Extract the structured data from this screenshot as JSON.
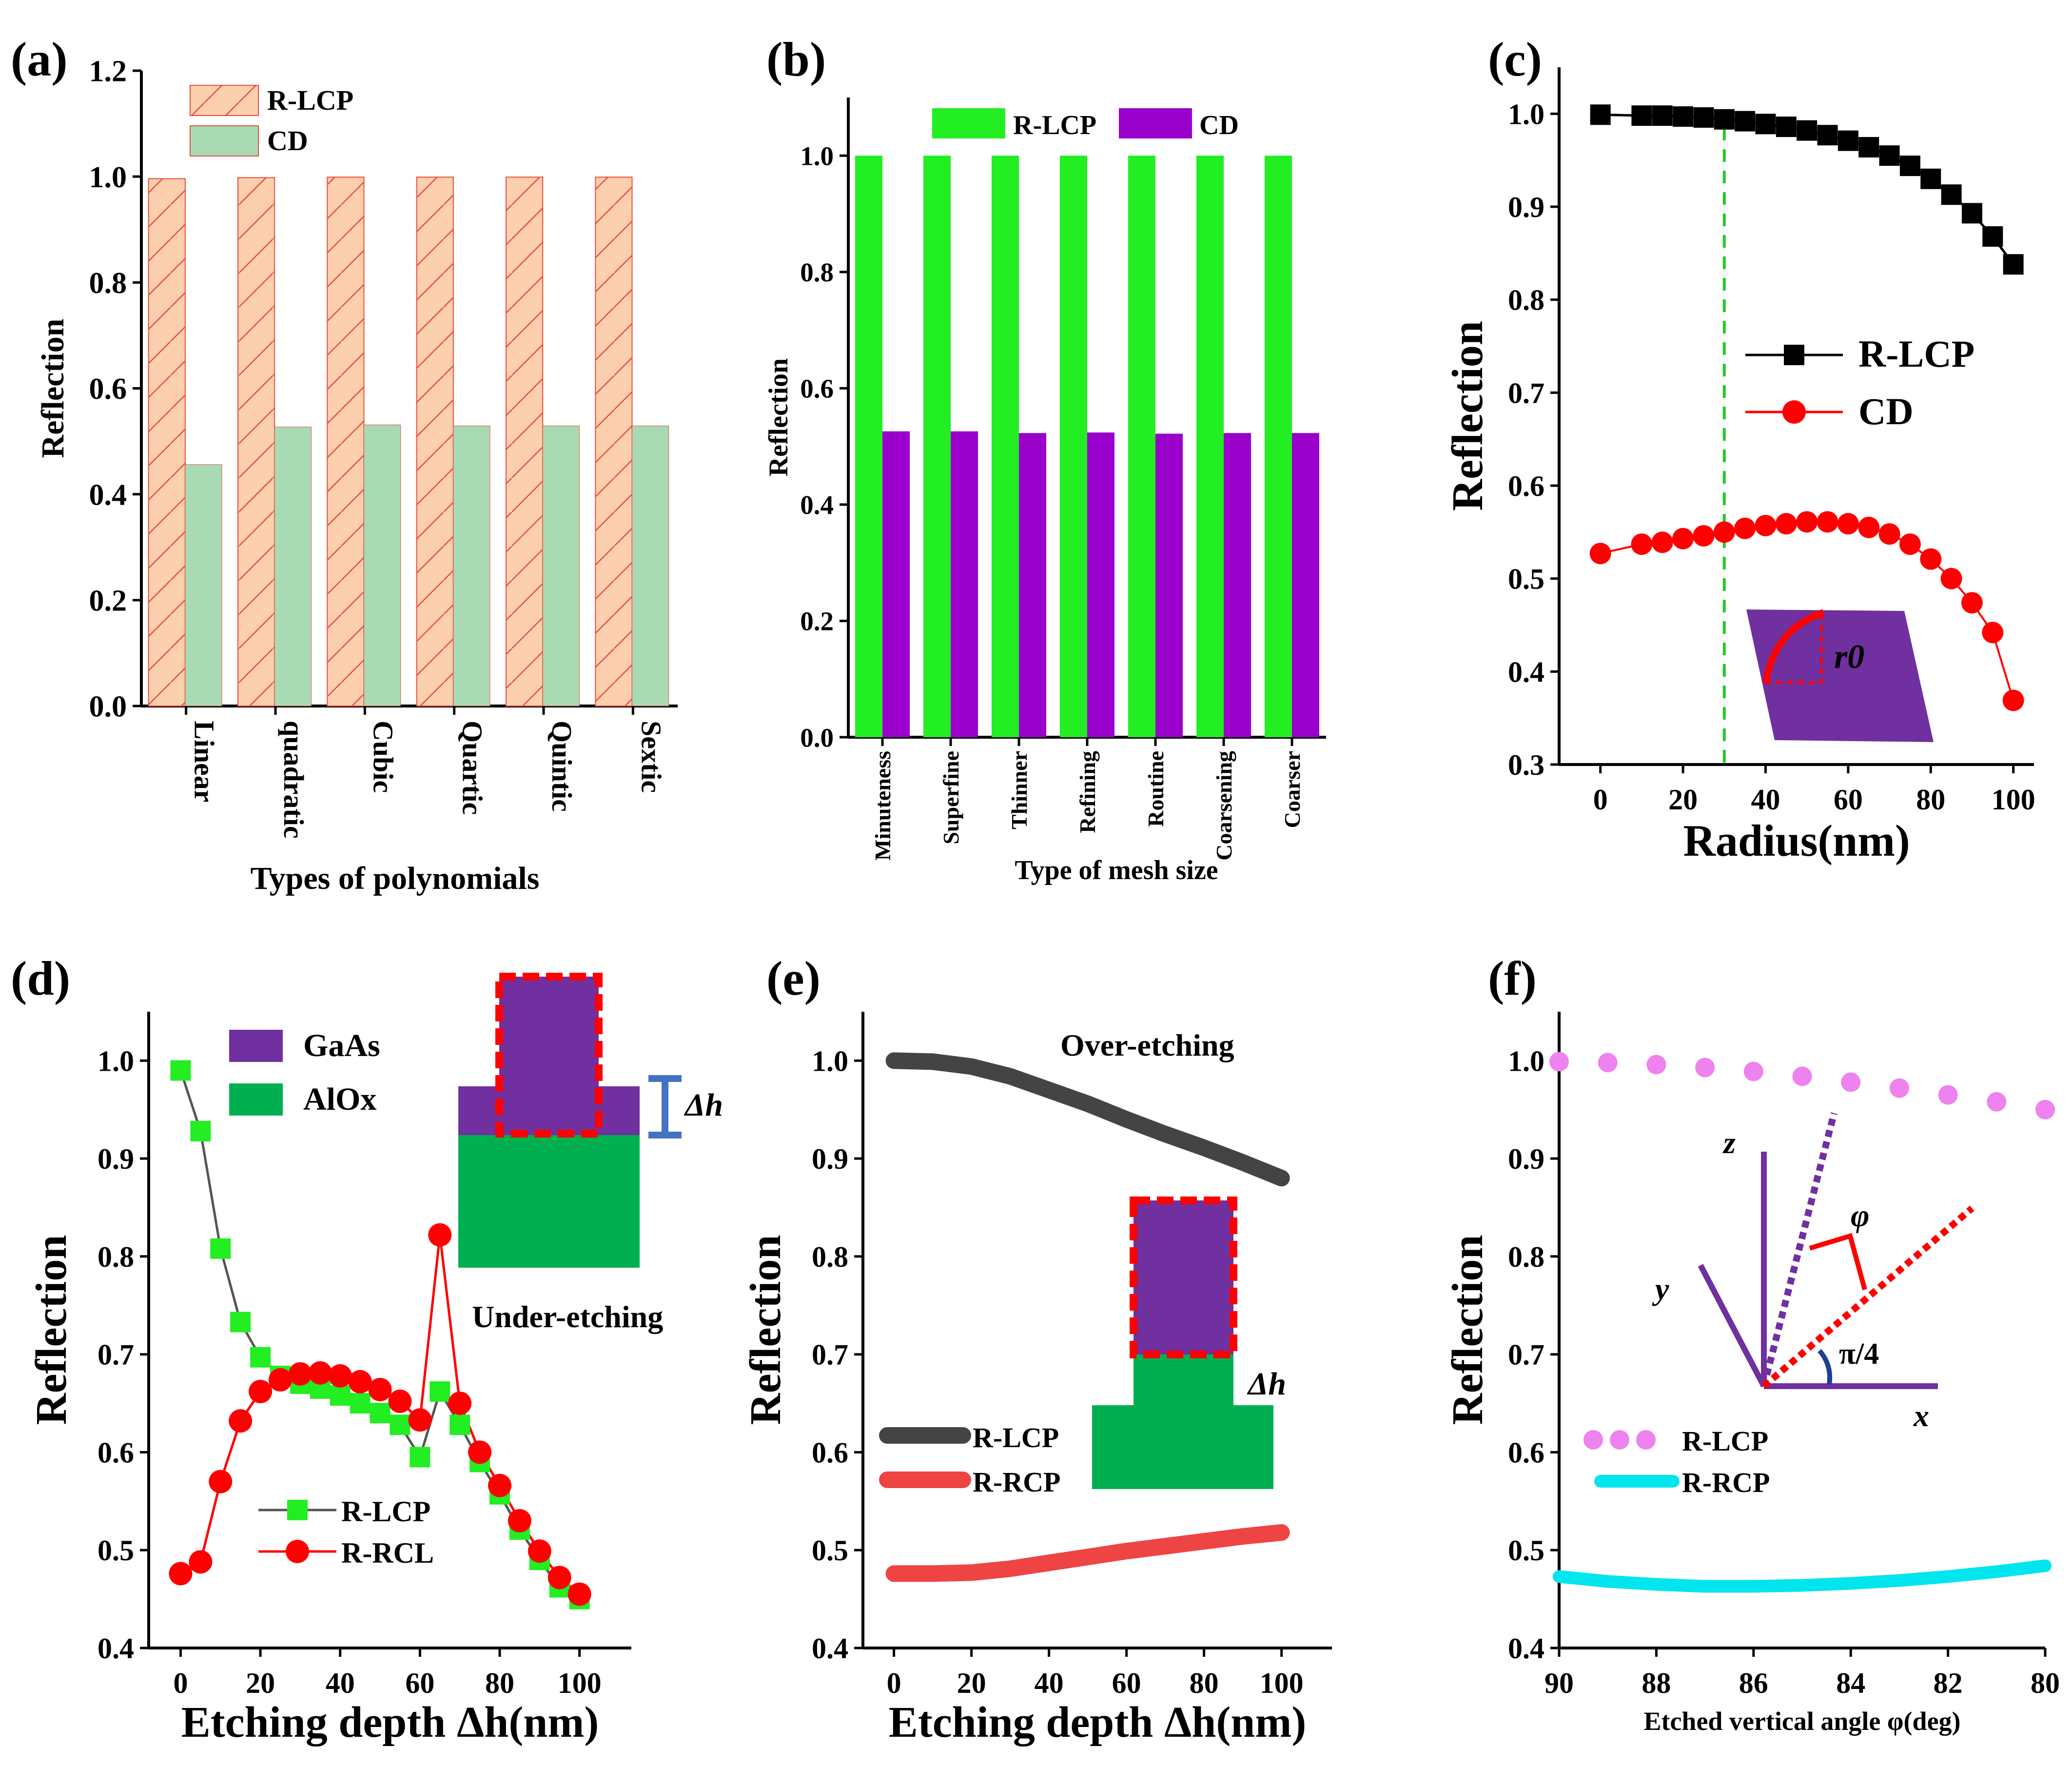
{
  "chart_data": [
    {
      "panel": "(a)",
      "type": "bar",
      "xlabel": "Types of polynomials",
      "ylabel": "Reflection",
      "ylim": [
        0,
        1.2
      ],
      "yticks": [
        "0.0",
        "0.2",
        "0.4",
        "0.6",
        "0.8",
        "1.0",
        "1.2"
      ],
      "categories": [
        "Linear",
        "quadratic",
        "Cubic",
        "Quartic",
        "Quintic",
        "Sextic"
      ],
      "series": [
        {
          "name": "R-LCP",
          "values": [
            0.996,
            0.998,
            0.999,
            0.999,
            0.999,
            0.999
          ],
          "color": "#FCCFAE",
          "edge": "#E74C3C"
        },
        {
          "name": "CD",
          "values": [
            0.456,
            0.527,
            0.531,
            0.529,
            0.529,
            0.529
          ],
          "color": "#A8DBB4",
          "edge": "#E74C3C"
        }
      ],
      "legend": "top-left"
    },
    {
      "panel": "(b)",
      "type": "bar",
      "xlabel": "Type of mesh size",
      "ylabel": "Reflection",
      "ylim": [
        0,
        1.1
      ],
      "yticks": [
        "0.0",
        "0.2",
        "0.4",
        "0.6",
        "0.8",
        "1.0"
      ],
      "categories": [
        "Minuteness",
        "Superfine",
        "Thinner",
        "Refining",
        "Routine",
        "Coarsening",
        "Coarser"
      ],
      "series": [
        {
          "name": "R-LCP",
          "values": [
            1.0,
            1.0,
            1.0,
            1.0,
            1.0,
            1.0,
            1.0
          ],
          "color": "#22EE22"
        },
        {
          "name": "CD",
          "values": [
            0.526,
            0.526,
            0.523,
            0.524,
            0.522,
            0.523,
            0.523
          ],
          "color": "#9900CC"
        }
      ],
      "legend": "top"
    },
    {
      "panel": "(c)",
      "type": "line",
      "xlabel": "Radius(nm)",
      "ylabel": "Reflection",
      "xlim": [
        -10,
        105
      ],
      "ylim": [
        0.3,
        1.05
      ],
      "xticks": [
        "0",
        "20",
        "40",
        "60",
        "80",
        "100"
      ],
      "yticks": [
        "0.3",
        "0.4",
        "0.5",
        "0.6",
        "0.7",
        "0.8",
        "0.9",
        "1.0"
      ],
      "x": [
        0,
        10,
        15,
        20,
        25,
        30,
        35,
        40,
        45,
        50,
        55,
        60,
        65,
        70,
        75,
        80,
        85,
        90,
        95,
        100
      ],
      "series": [
        {
          "name": "R-LCP",
          "values": [
            0.999,
            0.998,
            0.998,
            0.997,
            0.996,
            0.994,
            0.992,
            0.989,
            0.986,
            0.982,
            0.977,
            0.971,
            0.964,
            0.955,
            0.944,
            0.93,
            0.913,
            0.893,
            0.868,
            0.838
          ],
          "color": "#000000",
          "marker": "square"
        },
        {
          "name": "CD",
          "values": [
            0.527,
            0.537,
            0.539,
            0.543,
            0.546,
            0.55,
            0.554,
            0.557,
            0.559,
            0.561,
            0.561,
            0.559,
            0.555,
            0.548,
            0.537,
            0.521,
            0.5,
            0.474,
            0.442,
            0.369
          ],
          "color": "#FF0000",
          "marker": "circle"
        }
      ],
      "annotations": [
        "r0"
      ],
      "vline": 30,
      "legend": "center-right"
    },
    {
      "panel": "(d)",
      "type": "line",
      "xlabel": "Etching depth Δh(nm)",
      "ylabel": "Reflection",
      "xlim": [
        -8,
        113
      ],
      "ylim": [
        0.4,
        1.05
      ],
      "xticks": [
        "0",
        "20",
        "40",
        "60",
        "80",
        "100"
      ],
      "yticks": [
        "0.4",
        "0.5",
        "0.6",
        "0.7",
        "0.8",
        "0.9",
        "1.0"
      ],
      "x": [
        0,
        5,
        10,
        15,
        20,
        25,
        30,
        35,
        40,
        45,
        50,
        55,
        60,
        65,
        70,
        75,
        80,
        85,
        90,
        95,
        100
      ],
      "series": [
        {
          "name": "R-LCP",
          "values": [
            0.99,
            0.928,
            0.808,
            0.733,
            0.697,
            0.678,
            0.67,
            0.665,
            0.658,
            0.65,
            0.64,
            0.628,
            0.595,
            0.662,
            0.628,
            0.59,
            0.557,
            0.521,
            0.49,
            0.462,
            0.45
          ],
          "color": "#22EE22",
          "line": "#555555",
          "marker": "square"
        },
        {
          "name": "R-RCL",
          "values": [
            0.476,
            0.488,
            0.57,
            0.632,
            0.662,
            0.674,
            0.68,
            0.681,
            0.678,
            0.672,
            0.664,
            0.652,
            0.633,
            0.822,
            0.65,
            0.6,
            0.566,
            0.53,
            0.499,
            0.472,
            0.455
          ],
          "color": "#FF0000",
          "marker": "circle"
        }
      ],
      "inset_legend": [
        "GaAs",
        "AlOx"
      ],
      "annotations": [
        "Δh",
        "Under-etching"
      ],
      "legend": "bottom-left"
    },
    {
      "panel": "(e)",
      "type": "line",
      "xlabel": "Etching depth Δh(nm)",
      "ylabel": "Reflection",
      "xlim": [
        -8,
        113
      ],
      "ylim": [
        0.4,
        1.05
      ],
      "xticks": [
        "0",
        "20",
        "40",
        "60",
        "80",
        "100"
      ],
      "yticks": [
        "0.4",
        "0.5",
        "0.6",
        "0.7",
        "0.8",
        "0.9",
        "1.0"
      ],
      "x": [
        0,
        10,
        20,
        30,
        40,
        50,
        60,
        70,
        80,
        90,
        100
      ],
      "series": [
        {
          "name": "R-LCP",
          "values": [
            1.0,
            0.999,
            0.994,
            0.984,
            0.97,
            0.956,
            0.94,
            0.925,
            0.911,
            0.896,
            0.88
          ],
          "color": "#444444"
        },
        {
          "name": "R-RCP",
          "values": [
            0.476,
            0.476,
            0.477,
            0.481,
            0.487,
            0.493,
            0.499,
            0.504,
            0.509,
            0.514,
            0.518
          ],
          "color": "#EE4444"
        }
      ],
      "annotations": [
        "Over-etching",
        "Δh"
      ],
      "legend": "center-left"
    },
    {
      "panel": "(f)",
      "type": "line",
      "xlabel": "Etched vertical angle φ(deg)",
      "ylabel": "Reflection",
      "xlim": [
        90,
        80
      ],
      "ylim": [
        0.4,
        1.05
      ],
      "xticks": [
        "90",
        "88",
        "86",
        "84",
        "82",
        "80"
      ],
      "yticks": [
        "0.4",
        "0.5",
        "0.6",
        "0.7",
        "0.8",
        "0.9",
        "1.0"
      ],
      "x": [
        90,
        89,
        88,
        87,
        86,
        85,
        84,
        83,
        82,
        81,
        80
      ],
      "series": [
        {
          "name": "R-LCP",
          "values": [
            0.999,
            0.998,
            0.996,
            0.993,
            0.989,
            0.984,
            0.978,
            0.972,
            0.965,
            0.958,
            0.95
          ],
          "color": "#EE82EE",
          "style": "dotted"
        },
        {
          "name": "R-RCP",
          "values": [
            0.473,
            0.468,
            0.465,
            0.463,
            0.463,
            0.464,
            0.466,
            0.469,
            0.473,
            0.478,
            0.484
          ],
          "color": "#00E5EE"
        }
      ],
      "annotations": [
        "z",
        "y",
        "x",
        "φ",
        "π/4"
      ],
      "legend": "bottom-left"
    }
  ]
}
